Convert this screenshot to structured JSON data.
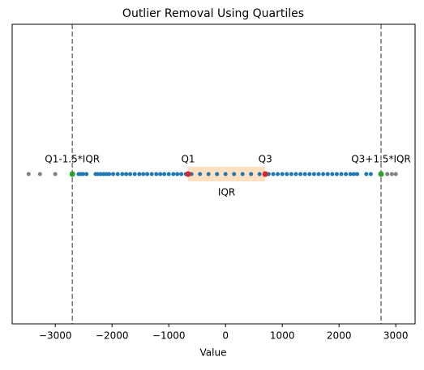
{
  "chart_data": {
    "type": "strip",
    "title": "Outlier Removal Using Quartiles",
    "xlabel": "Value",
    "xlim": [
      -3760,
      3340
    ],
    "xticks": [
      {
        "value": -3000,
        "label": "−3000"
      },
      {
        "value": -2000,
        "label": "−2000"
      },
      {
        "value": -1000,
        "label": "−1000"
      },
      0,
      1000,
      2000,
      3000
    ],
    "series": [
      {
        "color": "#1f77b4",
        "values": [
          -2590,
          -2550,
          -2510,
          -2450,
          -2290,
          -2250,
          -2200,
          -2150,
          -2100,
          -2050,
          -1980,
          -1900,
          -1820,
          -1750,
          -1680,
          -1600,
          -1520,
          -1450,
          -1380,
          -1300,
          -1220,
          -1150,
          -1080,
          -1000,
          -920,
          -850,
          -780,
          -700,
          -600,
          -450,
          -300,
          -150,
          0,
          150,
          300,
          450,
          600,
          760,
          840,
          920,
          1000,
          1080,
          1160,
          1240,
          1320,
          1400,
          1480,
          1560,
          1640,
          1720,
          1800,
          1880,
          1960,
          2040,
          2120,
          2200,
          2260,
          2320,
          2480,
          2560
        ]
      },
      {
        "color": "#808080",
        "values": [
          -3470,
          -3270,
          -3000,
          2850,
          2930,
          3000
        ]
      }
    ],
    "markers": [
      {
        "label": "Q1",
        "value": -660,
        "color": "#d62728"
      },
      {
        "label": "Q3",
        "value": 700,
        "color": "#d62728"
      },
      {
        "label": "Q1-1.5*IQR",
        "value": -2700,
        "color": "#2ca02c",
        "line": true
      },
      {
        "label": "Q3+1.5*IQR",
        "value": 2740,
        "color": "#2ca02c",
        "line": true
      }
    ],
    "span_label": "IQR",
    "span_color": "#ffe0c0"
  }
}
